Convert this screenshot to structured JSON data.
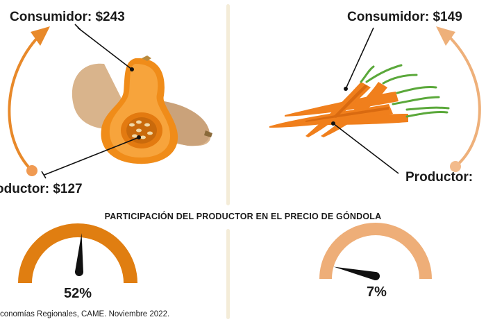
{
  "left_product": {
    "icon": "butternut-squash-icon",
    "consumer_label": "Consumidor: $243",
    "producer_label": "oductor: $127",
    "arrow_color": "#e8892a",
    "gauge": {
      "percent": 52,
      "label": "52%",
      "color": "#e07e11"
    }
  },
  "right_product": {
    "icon": "carrots-icon",
    "consumer_label": "Consumidor: $149",
    "producer_label": "Productor:",
    "arrow_color": "#eeb07a",
    "gauge": {
      "percent": 7,
      "label": "7%",
      "color": "#eeae78"
    }
  },
  "title": "PARTICIPACIÓN DEL PRODUCTOR EN EL PRECIO DE GÓNDOLA",
  "source": "conomías Regionales, CAME. Noviembre 2022."
}
